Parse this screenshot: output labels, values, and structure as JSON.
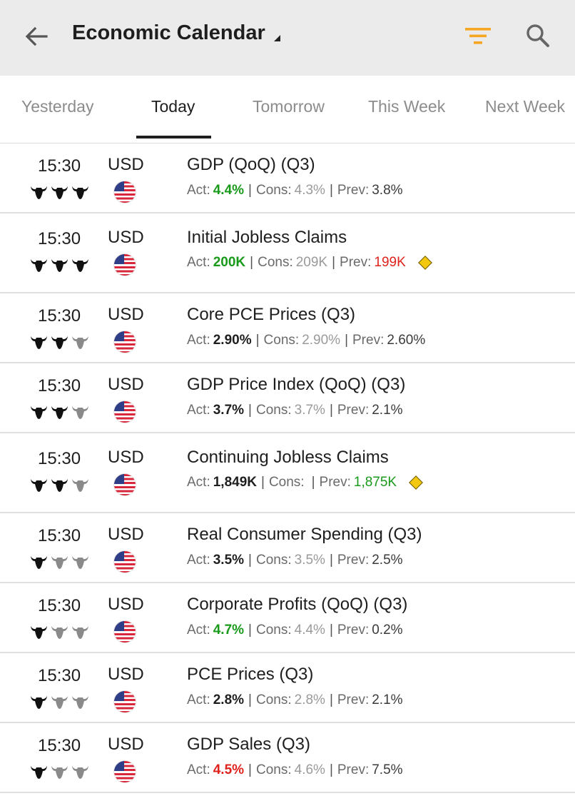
{
  "header": {
    "title": "Economic Calendar",
    "back_icon": "arrow-left-icon",
    "filter_icon": "filter-icon",
    "search_icon": "search-icon",
    "accent_color": "#f5a623"
  },
  "tabs": [
    {
      "label": "Yesterday",
      "active": false
    },
    {
      "label": "Today",
      "active": true
    },
    {
      "label": "Tomorrow",
      "active": false
    },
    {
      "label": "This Week",
      "active": false
    },
    {
      "label": "Next Week",
      "active": false
    }
  ],
  "events": [
    {
      "time": "15:30",
      "currency": "USD",
      "importance": 3,
      "name": "GDP (QoQ) (Q3)",
      "actual": "4.4%",
      "actual_color": "green",
      "consensus": "4.3%",
      "previous": "3.8%",
      "previous_color": "",
      "revised": false
    },
    {
      "time": "15:30",
      "currency": "USD",
      "importance": 3,
      "name": "Initial Jobless Claims",
      "actual": "200K",
      "actual_color": "green",
      "consensus": "209K",
      "previous": "199K",
      "previous_color": "red",
      "revised": true
    },
    {
      "time": "15:30",
      "currency": "USD",
      "importance": 2,
      "name": "Core PCE Prices (Q3)",
      "actual": "2.90%",
      "actual_color": "",
      "consensus": "2.90%",
      "previous": "2.60%",
      "previous_color": "",
      "revised": false
    },
    {
      "time": "15:30",
      "currency": "USD",
      "importance": 2,
      "name": "GDP Price Index (QoQ) (Q3)",
      "actual": "3.7%",
      "actual_color": "",
      "consensus": "3.7%",
      "previous": "2.1%",
      "previous_color": "",
      "revised": false
    },
    {
      "time": "15:30",
      "currency": "USD",
      "importance": 2,
      "name": "Continuing Jobless Claims",
      "actual": "1,849K",
      "actual_color": "",
      "consensus": "",
      "previous": "1,875K",
      "previous_color": "green",
      "revised": true
    },
    {
      "time": "15:30",
      "currency": "USD",
      "importance": 1,
      "name": "Real Consumer Spending (Q3)",
      "actual": "3.5%",
      "actual_color": "",
      "consensus": "3.5%",
      "previous": "2.5%",
      "previous_color": "",
      "revised": false
    },
    {
      "time": "15:30",
      "currency": "USD",
      "importance": 1,
      "name": "Corporate Profits (QoQ) (Q3)",
      "actual": "4.7%",
      "actual_color": "green",
      "consensus": "4.4%",
      "previous": "0.2%",
      "previous_color": "",
      "revised": false
    },
    {
      "time": "15:30",
      "currency": "USD",
      "importance": 1,
      "name": "PCE Prices (Q3)",
      "actual": "2.8%",
      "actual_color": "",
      "consensus": "2.8%",
      "previous": "2.1%",
      "previous_color": "",
      "revised": false
    },
    {
      "time": "15:30",
      "currency": "USD",
      "importance": 1,
      "name": "GDP Sales (Q3)",
      "actual": "4.5%",
      "actual_color": "red",
      "consensus": "4.6%",
      "previous": "7.5%",
      "previous_color": "",
      "revised": false
    }
  ],
  "labels": {
    "act": "Act:",
    "cons": "Cons:",
    "prev": "Prev:",
    "sep": "|"
  },
  "colors": {
    "positive": "#1a9a1a",
    "negative": "#e0221c",
    "revised": "#f2c811",
    "bull_active": "#111111",
    "bull_inactive": "#8a8a8a"
  }
}
